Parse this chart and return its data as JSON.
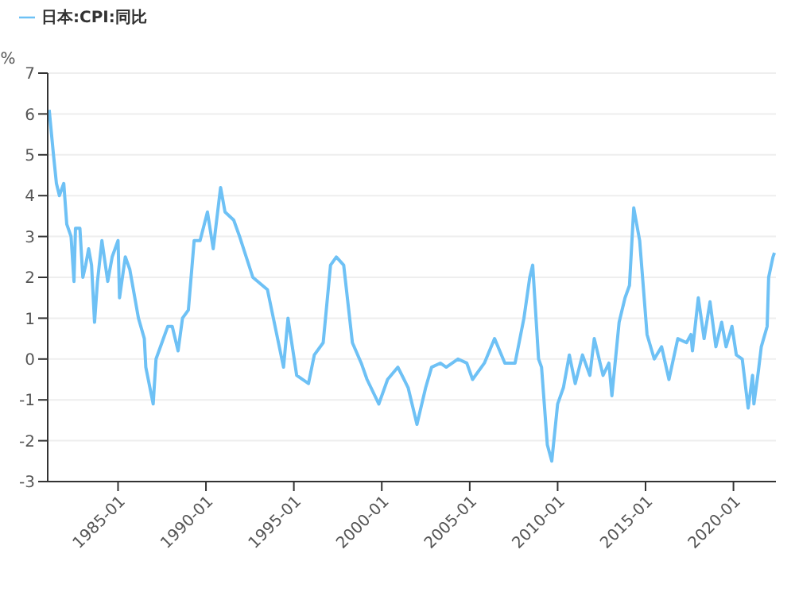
{
  "chart_data": {
    "type": "line",
    "ylabel": "%",
    "legend": "top left",
    "grid": "y",
    "marker": "none",
    "xlim": [
      "1981-01",
      "2022-06"
    ],
    "xticks": [
      "1985-01",
      "1990-01",
      "1995-01",
      "2000-01",
      "2005-01",
      "2010-01",
      "2015-01",
      "2020-01"
    ],
    "ylim": [
      -3,
      7
    ],
    "yticks": [
      -3,
      -2,
      -1,
      0,
      1,
      2,
      3,
      4,
      5,
      6,
      7
    ],
    "x": [
      "1981-02",
      "1981-05",
      "1981-07",
      "1981-09",
      "1981-12",
      "1982-02",
      "1982-05",
      "1982-07",
      "1982-08",
      "1982-11",
      "1983-01",
      "1983-03",
      "1983-05",
      "1983-07",
      "1983-09",
      "1983-11",
      "1984-02",
      "1984-06",
      "1984-09",
      "1985-01",
      "1985-02",
      "1985-06",
      "1985-09",
      "1986-03",
      "1986-07",
      "1986-08",
      "1987-01",
      "1987-03",
      "1987-07",
      "1987-11",
      "1988-02",
      "1988-06",
      "1988-09",
      "1989-01",
      "1989-05",
      "1989-09",
      "1990-02",
      "1990-06",
      "1990-11",
      "1991-02",
      "1991-08",
      "1991-12",
      "1992-09",
      "1993-07",
      "1994-06",
      "1994-09",
      "1995-03",
      "1995-11",
      "1996-03",
      "1996-09",
      "1997-02",
      "1997-06",
      "1997-11",
      "1998-05",
      "1998-11",
      "1999-03",
      "1999-11",
      "2000-05",
      "2000-12",
      "2001-07",
      "2002-01",
      "2002-07",
      "2002-11",
      "2003-05",
      "2003-09",
      "2004-05",
      "2004-11",
      "2005-03",
      "2005-11",
      "2006-06",
      "2007-01",
      "2007-08",
      "2008-02",
      "2008-06",
      "2008-08",
      "2008-12",
      "2009-02",
      "2009-06",
      "2009-09",
      "2010-01",
      "2010-05",
      "2010-09",
      "2011-01",
      "2011-06",
      "2011-11",
      "2012-02",
      "2012-08",
      "2012-12",
      "2013-02",
      "2013-07",
      "2013-11",
      "2014-02",
      "2014-05",
      "2014-09",
      "2015-02",
      "2015-07",
      "2015-12",
      "2016-05",
      "2016-11",
      "2017-05",
      "2017-08",
      "2017-09",
      "2018-01",
      "2018-05",
      "2018-09",
      "2019-01",
      "2019-05",
      "2019-08",
      "2019-12",
      "2020-03",
      "2020-07",
      "2020-11",
      "2021-02",
      "2021-03",
      "2021-06",
      "2021-08",
      "2021-12",
      "2022-01",
      "2022-04",
      "2022-05"
    ],
    "series": [
      {
        "name": "日本:CPI:同比",
        "color": "#6ec1f5",
        "values": [
          6.1,
          5.0,
          4.3,
          4.0,
          4.3,
          3.3,
          3.0,
          1.9,
          3.2,
          3.2,
          2.0,
          2.3,
          2.7,
          2.3,
          0.9,
          1.9,
          2.9,
          1.9,
          2.5,
          2.9,
          1.5,
          2.5,
          2.2,
          1.0,
          0.5,
          -0.2,
          -1.1,
          0.0,
          0.4,
          0.8,
          0.8,
          0.2,
          1.0,
          1.2,
          2.9,
          2.9,
          3.6,
          2.7,
          4.2,
          3.6,
          3.4,
          3.0,
          2.0,
          1.7,
          -0.2,
          1.0,
          -0.4,
          -0.6,
          0.1,
          0.4,
          2.3,
          2.5,
          2.3,
          0.4,
          -0.1,
          -0.5,
          -1.1,
          -0.5,
          -0.2,
          -0.7,
          -1.6,
          -0.7,
          -0.2,
          -0.1,
          -0.2,
          0.0,
          -0.1,
          -0.5,
          -0.1,
          0.5,
          -0.1,
          -0.1,
          1.0,
          2.0,
          2.3,
          0.0,
          -0.2,
          -2.1,
          -2.5,
          -1.1,
          -0.7,
          0.1,
          -0.6,
          0.1,
          -0.4,
          0.5,
          -0.4,
          -0.1,
          -0.9,
          0.9,
          1.5,
          1.8,
          3.7,
          2.9,
          0.6,
          0.0,
          0.3,
          -0.5,
          0.5,
          0.4,
          0.6,
          0.2,
          1.5,
          0.5,
          1.4,
          0.3,
          0.9,
          0.3,
          0.8,
          0.1,
          0.0,
          -1.2,
          -0.4,
          -1.1,
          -0.3,
          0.3,
          0.8,
          2.0,
          2.5,
          2.6
        ]
      }
    ]
  }
}
